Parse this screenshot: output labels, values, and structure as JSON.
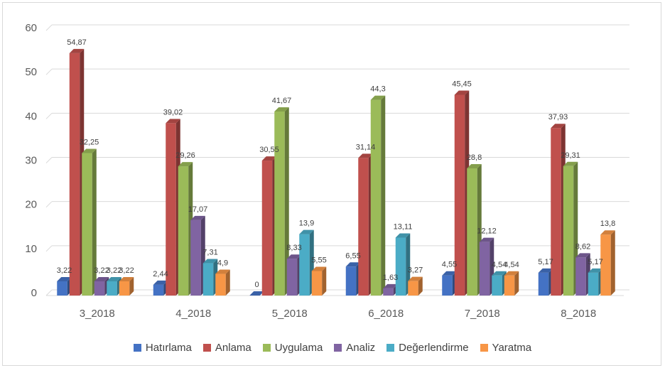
{
  "chart_data": {
    "type": "bar",
    "title": "",
    "xlabel": "",
    "ylabel": "",
    "ylim": [
      0,
      60
    ],
    "yticks": [
      0,
      10,
      20,
      30,
      40,
      50,
      60
    ],
    "grid": true,
    "legend_position": "bottom",
    "categories": [
      "3_2018",
      "4_2018",
      "5_2018",
      "6_2018",
      "7_2018",
      "8_2018"
    ],
    "series": [
      {
        "name": "Hatırlama",
        "color": "#4472c4",
        "values": [
          3.22,
          2.44,
          0,
          6.55,
          4.55,
          5.17
        ],
        "labels": [
          "3,22",
          "2,44",
          "0",
          "6,55",
          "4,55",
          "5,17"
        ]
      },
      {
        "name": "Anlama",
        "color": "#c0504d",
        "values": [
          54.87,
          39.02,
          30.55,
          31.14,
          45.45,
          37.93
        ],
        "labels": [
          "54,87",
          "39,02",
          "30,55",
          "31,14",
          "45,45",
          "37,93"
        ]
      },
      {
        "name": "Uygulama",
        "color": "#9bbb59",
        "values": [
          32.25,
          29.26,
          41.67,
          44.3,
          28.8,
          29.31
        ],
        "labels": [
          "32,25",
          "29,26",
          "41,67",
          "44,3",
          "28,8",
          "29,31"
        ]
      },
      {
        "name": "Analiz",
        "color": "#8064a2",
        "values": [
          3.22,
          17.07,
          8.33,
          1.63,
          12.12,
          8.62
        ],
        "labels": [
          "3,22",
          "17,07",
          "8,33",
          "1,63",
          "12,12",
          "8,62"
        ]
      },
      {
        "name": "Değerlendirme",
        "color": "#4bacc6",
        "values": [
          3.22,
          7.31,
          13.9,
          13.11,
          4.54,
          5.17
        ],
        "labels": [
          "3,22",
          "7,31",
          "13,9",
          "13,11",
          "4,54",
          "5,17"
        ]
      },
      {
        "name": "Yaratma",
        "color": "#f79646",
        "values": [
          3.22,
          4.9,
          5.55,
          3.27,
          4.54,
          13.8
        ],
        "labels": [
          "3,22",
          "4,9",
          "5,55",
          "3,27",
          "4,54",
          "13,8"
        ]
      }
    ]
  }
}
